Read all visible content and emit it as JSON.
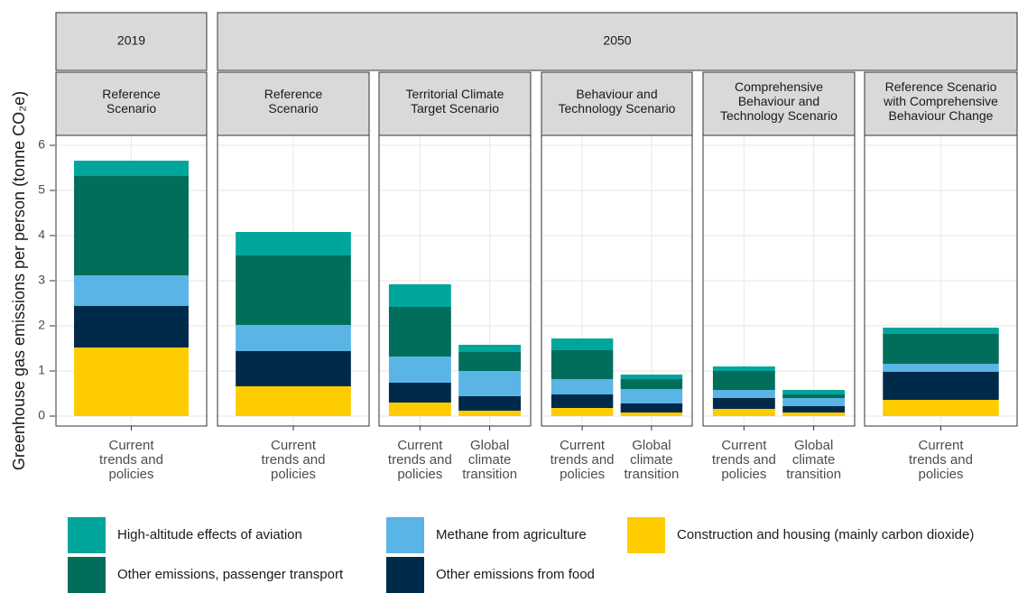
{
  "chart_data": {
    "type": "stacked-bar-facets",
    "y_label": "Greenhouse gas emissions per person (tonne CO₂e)",
    "ylim": [
      -0.22,
      6.22
    ],
    "yticks": [
      0,
      1,
      2,
      3,
      4,
      5,
      6
    ],
    "grid": true,
    "series": [
      {
        "name": "High-altitude effects of aviation",
        "color": "#00a59c"
      },
      {
        "name": "Other emissions, passenger transport",
        "color": "#006e5a"
      },
      {
        "name": "Methane from agriculture",
        "color": "#5ab4e5"
      },
      {
        "name": "Other emissions from food",
        "color": "#002a4a"
      },
      {
        "name": "Construction and housing (mainly carbon dioxide)",
        "color": "#ffcc00"
      }
    ],
    "groups": [
      {
        "label": "2019",
        "panels": [
          {
            "title": "Reference\nScenario",
            "categories": [
              "Current\ntrends and\npolicies"
            ],
            "values": [
              [
                0.34
              ],
              [
                2.2
              ],
              [
                0.68
              ],
              [
                0.92
              ],
              [
                1.52
              ]
            ]
          }
        ]
      },
      {
        "label": "2050",
        "panels": [
          {
            "title": "Reference\nScenario",
            "categories": [
              "Current\ntrends and\npolicies"
            ],
            "values": [
              [
                0.52
              ],
              [
                1.54
              ],
              [
                0.58
              ],
              [
                0.78
              ],
              [
                0.66
              ]
            ]
          },
          {
            "title": "Territorial Climate\nTarget Scenario",
            "categories": [
              "Current\ntrends and\npolicies",
              "Global\nclimate\ntransition"
            ],
            "values": [
              [
                0.5,
                0.16
              ],
              [
                1.1,
                0.42
              ],
              [
                0.58,
                0.56
              ],
              [
                0.44,
                0.32
              ],
              [
                0.3,
                0.12
              ]
            ]
          },
          {
            "title": "Behaviour and\nTechnology Scenario",
            "categories": [
              "Current\ntrends and\npolicies",
              "Global\nclimate\ntransition"
            ],
            "values": [
              [
                0.26,
                0.1
              ],
              [
                0.64,
                0.22
              ],
              [
                0.34,
                0.32
              ],
              [
                0.3,
                0.2
              ],
              [
                0.18,
                0.08
              ]
            ]
          },
          {
            "title": "Comprehensive\nBehaviour and\nTechnology Scenario",
            "categories": [
              "Current\ntrends and\npolicies",
              "Global\nclimate\ntransition"
            ],
            "values": [
              [
                0.1,
                0.1
              ],
              [
                0.42,
                0.08
              ],
              [
                0.18,
                0.18
              ],
              [
                0.24,
                0.14
              ],
              [
                0.16,
                0.08
              ]
            ]
          },
          {
            "title": "Reference Scenario\nwith Comprehensive\nBehaviour Change",
            "categories": [
              "Current\ntrends and\npolicies"
            ],
            "values": [
              [
                0.14
              ],
              [
                0.66
              ],
              [
                0.18
              ],
              [
                0.62
              ],
              [
                0.36
              ]
            ]
          }
        ]
      }
    ]
  }
}
